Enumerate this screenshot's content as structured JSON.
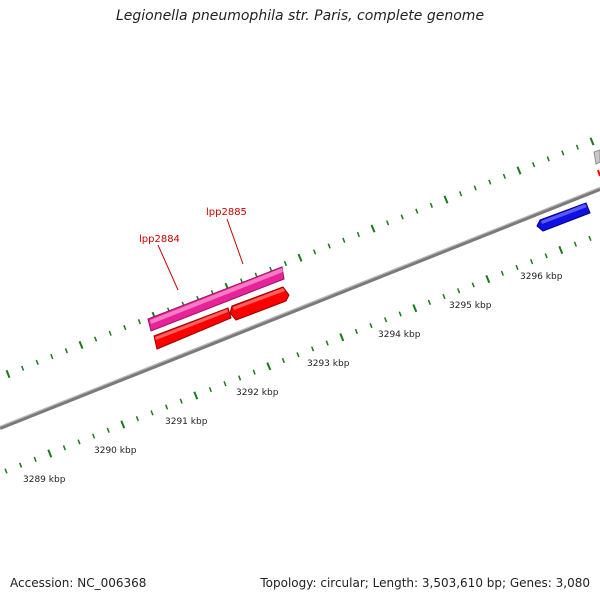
{
  "title": "Legionella pneumophila str. Paris, complete genome",
  "footer": {
    "accession": "Accession: NC_006368",
    "summary": "Topology: circular; Length: 3,503,610 bp; Genes: 3,080"
  },
  "colors": {
    "backbone": "#8a8a8a",
    "tick": "#1a7a1a",
    "gene_label": "#cc0000",
    "gene_magenta": "#e8239a",
    "gene_red": "#ff0000",
    "gene_blue": "#1010e0",
    "gene_grey": "#c8c8c8"
  },
  "scale_labels": [
    "3289 kbp",
    "3290 kbp",
    "3291 kbp",
    "3292 kbp",
    "3293 kbp",
    "3294 kbp",
    "3295 kbp",
    "3296 kbp"
  ],
  "genes": [
    {
      "label": "lpp2884",
      "strand": "+",
      "color": "magenta"
    },
    {
      "label": "lpp2885",
      "strand": "+",
      "color": "magenta"
    },
    {
      "label": "",
      "strand": "-",
      "color": "red"
    },
    {
      "label": "",
      "strand": "-",
      "color": "red"
    },
    {
      "label": "",
      "strand": "-",
      "color": "blue"
    },
    {
      "label": "",
      "strand": "+",
      "color": "grey"
    }
  ]
}
